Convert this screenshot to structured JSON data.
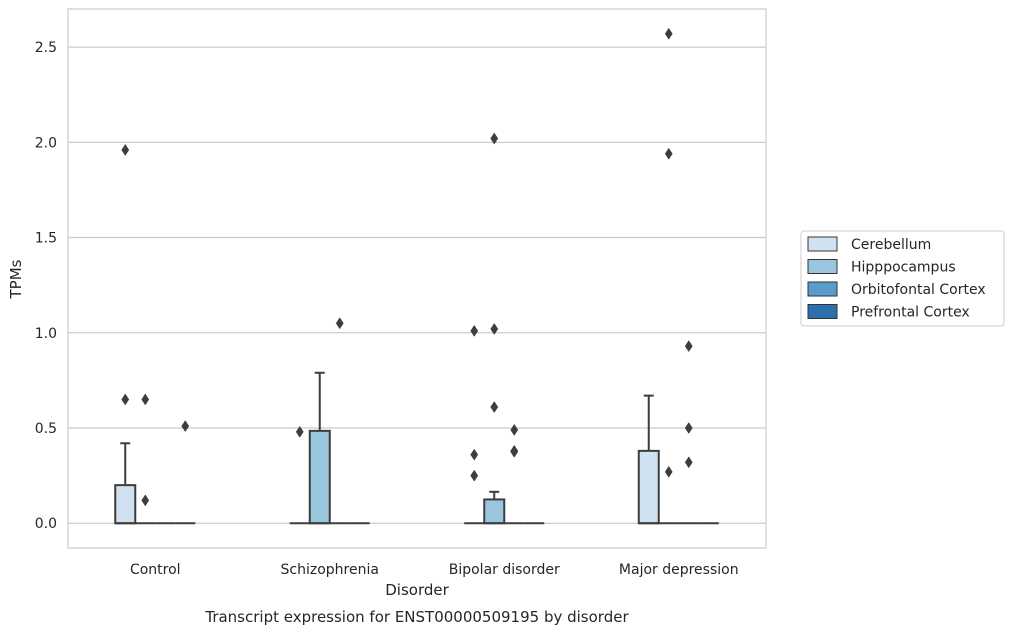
{
  "chart_data": {
    "type": "box",
    "title": "",
    "caption": "Transcript expression for ENST00000509195 by disorder",
    "xlabel": "Disorder",
    "ylabel": "TPMs",
    "ylim": [
      -0.13,
      2.7
    ],
    "yticks": [
      "0.0",
      "0.5",
      "1.0",
      "1.5",
      "2.0",
      "2.5"
    ],
    "grid": "horizontal",
    "legend_placement": "right",
    "categories": [
      "Control",
      "Schizophrenia",
      "Bipolar disorder",
      "Major depression"
    ],
    "series": [
      {
        "name": "Cerebellum",
        "color": "#d0e1f2",
        "boxes": [
          {
            "q1": 0.0,
            "median": 0.0,
            "q3": 0.2,
            "whisker_low": 0.0,
            "whisker_high": 0.42,
            "outliers": [
              1.96,
              0.65
            ]
          },
          {
            "q1": 0.0,
            "median": 0.0,
            "q3": 0.0,
            "whisker_low": 0.0,
            "whisker_high": 0.0,
            "outliers": [
              0.48
            ]
          },
          {
            "q1": 0.0,
            "median": 0.0,
            "q3": 0.0,
            "whisker_low": 0.0,
            "whisker_high": 0.0,
            "outliers": [
              1.01,
              0.36,
              0.25
            ]
          },
          {
            "q1": 0.0,
            "median": 0.0,
            "q3": 0.38,
            "whisker_low": 0.0,
            "whisker_high": 0.67,
            "outliers": []
          }
        ]
      },
      {
        "name": "Hipppocampus",
        "color": "#9ac5de",
        "boxes": [
          {
            "q1": 0.0,
            "median": 0.0,
            "q3": 0.0,
            "whisker_low": 0.0,
            "whisker_high": 0.0,
            "outliers": [
              0.65,
              0.12
            ]
          },
          {
            "q1": 0.0,
            "median": 0.0,
            "q3": 0.485,
            "whisker_low": 0.0,
            "whisker_high": 0.79,
            "outliers": []
          },
          {
            "q1": 0.0,
            "median": 0.0,
            "q3": 0.125,
            "whisker_low": 0.0,
            "whisker_high": 0.165,
            "outliers": [
              2.02,
              1.02,
              0.61
            ]
          },
          {
            "q1": 0.0,
            "median": 0.0,
            "q3": 0.0,
            "whisker_low": 0.0,
            "whisker_high": 0.0,
            "outliers": [
              2.57,
              1.94,
              0.27
            ]
          }
        ]
      },
      {
        "name": "Orbitofontal Cortex",
        "color": "#5a9ccb",
        "boxes": [
          {
            "q1": 0.0,
            "median": 0.0,
            "q3": 0.0,
            "whisker_low": 0.0,
            "whisker_high": 0.0,
            "outliers": []
          },
          {
            "q1": 0.0,
            "median": 0.0,
            "q3": 0.0,
            "whisker_low": 0.0,
            "whisker_high": 0.0,
            "outliers": [
              1.05
            ]
          },
          {
            "q1": 0.0,
            "median": 0.0,
            "q3": 0.0,
            "whisker_low": 0.0,
            "whisker_high": 0.0,
            "outliers": [
              0.49,
              0.38,
              0.375
            ]
          },
          {
            "q1": 0.0,
            "median": 0.0,
            "q3": 0.0,
            "whisker_low": 0.0,
            "whisker_high": 0.0,
            "outliers": [
              0.93,
              0.5,
              0.32
            ]
          }
        ]
      },
      {
        "name": "Prefrontal Cortex",
        "color": "#2e6fae",
        "boxes": [
          {
            "q1": 0.0,
            "median": 0.0,
            "q3": 0.0,
            "whisker_low": 0.0,
            "whisker_high": 0.0,
            "outliers": [
              0.51
            ]
          },
          {
            "q1": 0.0,
            "median": 0.0,
            "q3": 0.0,
            "whisker_low": 0.0,
            "whisker_high": 0.0,
            "outliers": []
          },
          {
            "q1": 0.0,
            "median": 0.0,
            "q3": 0.0,
            "whisker_low": 0.0,
            "whisker_high": 0.0,
            "outliers": []
          },
          {
            "q1": 0.0,
            "median": 0.0,
            "q3": 0.0,
            "whisker_low": 0.0,
            "whisker_high": 0.0,
            "outliers": []
          }
        ]
      }
    ],
    "colors": {
      "edge": "#3d3d3d",
      "grid": "#cccccc",
      "frame": "#cccccc",
      "legend_border": "#cccccc"
    }
  }
}
